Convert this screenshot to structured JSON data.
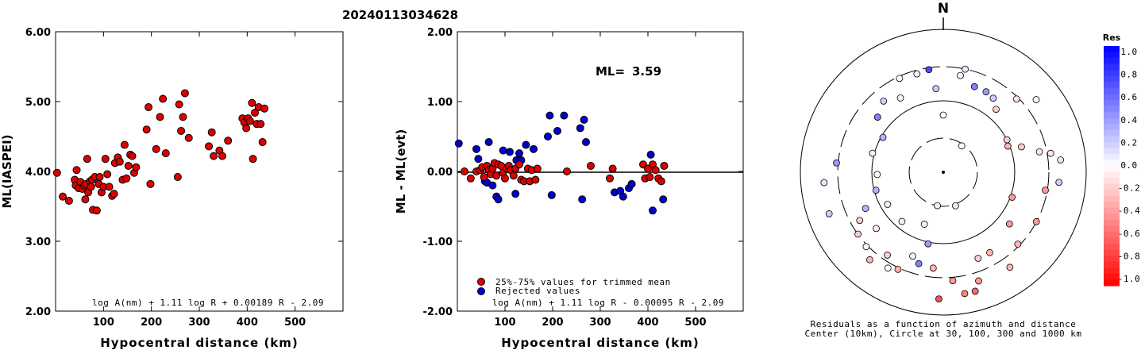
{
  "page_title": "20240113034628",
  "chart_data": [
    {
      "type": "scatter",
      "id": "ml_vs_distance",
      "xlabel": "Hypocentral distance (km)",
      "ylabel": "ML(IASPEI)",
      "xlim": [
        0,
        600
      ],
      "ylim": [
        2.0,
        6.0
      ],
      "x_ticks": [
        100,
        200,
        300,
        400,
        500
      ],
      "y_ticks": [
        "2.00",
        "3.00",
        "4.00",
        "5.00",
        "6.00"
      ],
      "formula": "log A(nm) + 1.11 log R + 0.00189 R - 2.09",
      "point_color": "#dd0000",
      "points": [
        [
          3,
          3.98
        ],
        [
          15,
          3.64
        ],
        [
          28,
          3.58
        ],
        [
          40,
          3.88
        ],
        [
          42,
          3.8
        ],
        [
          44,
          4.02
        ],
        [
          48,
          3.76
        ],
        [
          52,
          3.85
        ],
        [
          56,
          3.75
        ],
        [
          60,
          3.8
        ],
        [
          62,
          3.6
        ],
        [
          64,
          3.82
        ],
        [
          66,
          4.18
        ],
        [
          68,
          3.7
        ],
        [
          72,
          3.86
        ],
        [
          74,
          3.78
        ],
        [
          76,
          3.88
        ],
        [
          78,
          3.45
        ],
        [
          82,
          3.92
        ],
        [
          86,
          3.44
        ],
        [
          90,
          3.82
        ],
        [
          92,
          3.92
        ],
        [
          96,
          3.7
        ],
        [
          100,
          3.78
        ],
        [
          104,
          4.18
        ],
        [
          108,
          3.96
        ],
        [
          112,
          3.78
        ],
        [
          118,
          3.65
        ],
        [
          122,
          3.68
        ],
        [
          124,
          4.12
        ],
        [
          130,
          4.2
        ],
        [
          134,
          4.14
        ],
        [
          140,
          3.88
        ],
        [
          144,
          4.38
        ],
        [
          148,
          3.9
        ],
        [
          152,
          4.08
        ],
        [
          156,
          4.24
        ],
        [
          160,
          4.22
        ],
        [
          164,
          3.98
        ],
        [
          168,
          4.06
        ],
        [
          190,
          4.6
        ],
        [
          194,
          4.92
        ],
        [
          198,
          3.82
        ],
        [
          210,
          4.32
        ],
        [
          218,
          4.78
        ],
        [
          224,
          5.04
        ],
        [
          230,
          4.26
        ],
        [
          255,
          3.92
        ],
        [
          258,
          4.96
        ],
        [
          262,
          4.58
        ],
        [
          266,
          4.78
        ],
        [
          270,
          5.12
        ],
        [
          278,
          4.48
        ],
        [
          320,
          4.36
        ],
        [
          326,
          4.56
        ],
        [
          330,
          4.22
        ],
        [
          342,
          4.3
        ],
        [
          348,
          4.22
        ],
        [
          360,
          4.44
        ],
        [
          390,
          4.76
        ],
        [
          394,
          4.7
        ],
        [
          398,
          4.62
        ],
        [
          402,
          4.76
        ],
        [
          406,
          4.72
        ],
        [
          410,
          4.98
        ],
        [
          412,
          4.18
        ],
        [
          416,
          4.84
        ],
        [
          420,
          4.68
        ],
        [
          424,
          4.92
        ],
        [
          428,
          4.68
        ],
        [
          432,
          4.42
        ],
        [
          436,
          4.9
        ]
      ]
    },
    {
      "type": "scatter",
      "id": "residual_vs_distance",
      "xlabel": "Hypocentral distance (km)",
      "ylabel": "ML - ML(evt)",
      "xlim": [
        0,
        600
      ],
      "ylim": [
        -2.0,
        2.0
      ],
      "x_ticks": [
        100,
        200,
        300,
        400,
        500
      ],
      "y_ticks": [
        "-2.00",
        "-1.00",
        "0.00",
        "1.00",
        "2.00"
      ],
      "ml_label": "ML=",
      "ml_value": "3.59",
      "formula": "log A(nm) + 1.11 log R - 0.00095 R - 2.09",
      "legend": [
        {
          "label": "25%-75% values for trimmed mean",
          "color": "#dd0000"
        },
        {
          "label": "Rejected values",
          "color": "#0000cc"
        }
      ],
      "points_used": [
        [
          15,
          0.0
        ],
        [
          28,
          -0.1
        ],
        [
          40,
          0.0
        ],
        [
          48,
          0.02
        ],
        [
          52,
          0.06
        ],
        [
          56,
          -0.08
        ],
        [
          62,
          0.08
        ],
        [
          66,
          0.02
        ],
        [
          70,
          -0.04
        ],
        [
          74,
          0.04
        ],
        [
          78,
          0.12
        ],
        [
          82,
          -0.06
        ],
        [
          86,
          0.1
        ],
        [
          92,
          0.08
        ],
        [
          96,
          -0.02
        ],
        [
          100,
          -0.1
        ],
        [
          104,
          0.04
        ],
        [
          108,
          0.08
        ],
        [
          112,
          0.02
        ],
        [
          118,
          -0.06
        ],
        [
          122,
          0.04
        ],
        [
          130,
          0.1
        ],
        [
          134,
          -0.12
        ],
        [
          140,
          -0.14
        ],
        [
          148,
          0.04
        ],
        [
          152,
          -0.14
        ],
        [
          156,
          0.02
        ],
        [
          164,
          -0.12
        ],
        [
          168,
          0.04
        ],
        [
          230,
          0.0
        ],
        [
          280,
          0.08
        ],
        [
          320,
          -0.1
        ],
        [
          326,
          0.04
        ],
        [
          390,
          0.1
        ],
        [
          394,
          -0.1
        ],
        [
          400,
          0.04
        ],
        [
          404,
          -0.08
        ],
        [
          410,
          0.1
        ],
        [
          416,
          0.02
        ],
        [
          422,
          -0.1
        ],
        [
          428,
          -0.14
        ],
        [
          434,
          0.08
        ]
      ],
      "points_rejected": [
        [
          3,
          0.4
        ],
        [
          40,
          0.32
        ],
        [
          44,
          0.18
        ],
        [
          58,
          -0.14
        ],
        [
          62,
          -0.16
        ],
        [
          66,
          0.42
        ],
        [
          74,
          -0.2
        ],
        [
          82,
          -0.36
        ],
        [
          86,
          -0.4
        ],
        [
          96,
          0.3
        ],
        [
          110,
          0.28
        ],
        [
          124,
          0.16
        ],
        [
          122,
          -0.32
        ],
        [
          130,
          0.26
        ],
        [
          134,
          0.16
        ],
        [
          144,
          0.38
        ],
        [
          160,
          0.32
        ],
        [
          190,
          0.5
        ],
        [
          194,
          0.8
        ],
        [
          198,
          -0.34
        ],
        [
          210,
          0.58
        ],
        [
          224,
          0.8
        ],
        [
          262,
          -0.4
        ],
        [
          258,
          0.62
        ],
        [
          266,
          0.74
        ],
        [
          270,
          0.42
        ],
        [
          330,
          -0.3
        ],
        [
          342,
          -0.28
        ],
        [
          348,
          -0.36
        ],
        [
          360,
          -0.24
        ],
        [
          366,
          -0.18
        ],
        [
          406,
          0.24
        ],
        [
          410,
          -0.56
        ],
        [
          432,
          -0.4
        ]
      ]
    },
    {
      "type": "polar_scatter",
      "id": "azimuth_residuals",
      "north_label": "N",
      "caption_line1": "Residuals as a function of azimuth and distance",
      "caption_line2": "Center (10km), Circle at 30, 100, 300 and 1000 km",
      "rings_km": [
        30,
        100,
        300,
        1000
      ],
      "colorbar_title": "Res",
      "colorbar_ticks": [
        "1.0",
        "0.8",
        "0.6",
        "0.4",
        "0.2",
        "0.0",
        "-0.2",
        "-0.4",
        "-0.6",
        "-0.8",
        "-1.0"
      ],
      "stations": [
        [
          0,
          1.6,
          0.02
        ],
        [
          35,
          0.9,
          0.02
        ],
        [
          160,
          1.0,
          -0.1
        ],
        [
          190,
          0.95,
          0.05
        ],
        [
          200,
          1.55,
          0.05
        ],
        [
          220,
          1.8,
          0.05
        ],
        [
          240,
          1.8,
          0.05
        ],
        [
          268,
          1.85,
          0.02
        ],
        [
          255,
          1.95,
          0.3
        ],
        [
          285,
          2.05,
          0.05
        ],
        [
          300,
          1.95,
          0.3
        ],
        [
          310,
          2.4,
          0.5
        ],
        [
          320,
          2.6,
          0.2
        ],
        [
          330,
          2.4,
          0.05
        ],
        [
          335,
          2.9,
          0.02
        ],
        [
          345,
          2.85,
          0.05
        ],
        [
          352,
          2.9,
          0.7
        ],
        [
          355,
          2.35,
          0.2
        ],
        [
          10,
          2.75,
          0.02
        ],
        [
          12,
          2.95,
          0.1
        ],
        [
          20,
          2.55,
          0.5
        ],
        [
          28,
          2.55,
          0.4
        ],
        [
          34,
          2.5,
          0.2
        ],
        [
          40,
          2.3,
          -0.2
        ],
        [
          45,
          2.9,
          -0.1
        ],
        [
          52,
          3.3,
          0.02
        ],
        [
          63,
          2.0,
          -0.2
        ],
        [
          68,
          1.95,
          -0.3
        ],
        [
          72,
          2.3,
          -0.2
        ],
        [
          78,
          2.75,
          -0.1
        ],
        [
          80,
          3.05,
          -0.1
        ],
        [
          84,
          3.3,
          0.1
        ],
        [
          95,
          3.25,
          0.2
        ],
        [
          100,
          2.9,
          -0.4
        ],
        [
          110,
          2.05,
          -0.4
        ],
        [
          118,
          2.95,
          -0.4
        ],
        [
          128,
          2.35,
          -0.4
        ],
        [
          134,
          2.9,
          -0.3
        ],
        [
          145,
          3.25,
          -0.3
        ],
        [
          150,
          2.6,
          -0.3
        ],
        [
          158,
          2.6,
          -0.2
        ],
        [
          162,
          3.2,
          -0.4
        ],
        [
          165,
          3.45,
          -0.6
        ],
        [
          170,
          3.45,
          -0.5
        ],
        [
          175,
          3.05,
          -0.4
        ],
        [
          182,
          3.55,
          -0.7
        ],
        [
          186,
          2.7,
          -0.3
        ],
        [
          192,
          2.05,
          0.4
        ],
        [
          195,
          2.65,
          0.5
        ],
        [
          200,
          2.5,
          0.05
        ],
        [
          205,
          3.0,
          -0.3
        ],
        [
          210,
          3.1,
          0.02
        ],
        [
          214,
          2.8,
          -0.2
        ],
        [
          220,
          3.2,
          -0.3
        ],
        [
          226,
          3.0,
          0.02
        ],
        [
          230,
          2.45,
          -0.1
        ],
        [
          234,
          2.95,
          -0.2
        ],
        [
          240,
          2.7,
          -0.2
        ],
        [
          245,
          2.4,
          0.3
        ],
        [
          250,
          3.4,
          0.2
        ],
        [
          265,
          3.35,
          0.1
        ],
        [
          275,
          3.0,
          0.4
        ]
      ]
    }
  ]
}
